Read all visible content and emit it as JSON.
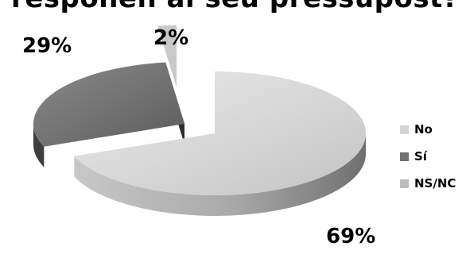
{
  "title": "responen al seu pressupost?",
  "chart_data": {
    "type": "pie",
    "style": "3d-exploded",
    "categories": [
      "No",
      "Sí",
      "NS/NC"
    ],
    "values": [
      69,
      29,
      2
    ],
    "labels": [
      "69%",
      "29%",
      "2%"
    ],
    "colors": [
      "#d4d4d4",
      "#707070",
      "#bdbdbd"
    ],
    "legend_position": "right"
  }
}
